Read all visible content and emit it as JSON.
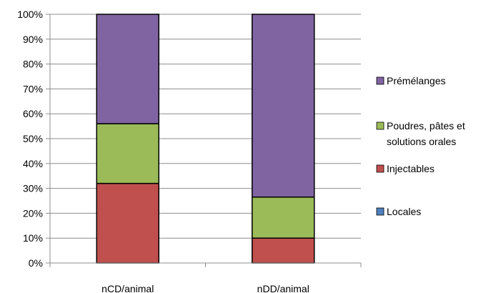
{
  "chart_data": {
    "type": "bar",
    "stacked": true,
    "percent": true,
    "categories": [
      "nCD/animal",
      "nDD/animal"
    ],
    "series": [
      {
        "name": "Locales",
        "color": "#4f81bd",
        "values": [
          0,
          0
        ]
      },
      {
        "name": "Injectables",
        "color": "#c0504d",
        "values": [
          32,
          10
        ]
      },
      {
        "name": "Poudres, pâtes et solutions orales",
        "legend_lines": [
          "Poudres, pâtes et",
          "solutions orales"
        ],
        "color": "#9bbb59",
        "values": [
          24,
          16.5
        ]
      },
      {
        "name": "Prémélanges",
        "color": "#8064a2",
        "values": [
          44,
          73.5
        ]
      }
    ],
    "yticks": [
      "0%",
      "10%",
      "20%",
      "30%",
      "40%",
      "50%",
      "60%",
      "70%",
      "80%",
      "90%",
      "100%"
    ],
    "ylim": [
      0,
      100
    ],
    "grid": true,
    "legend_position": "right",
    "title": "",
    "xlabel": "",
    "ylabel": ""
  }
}
